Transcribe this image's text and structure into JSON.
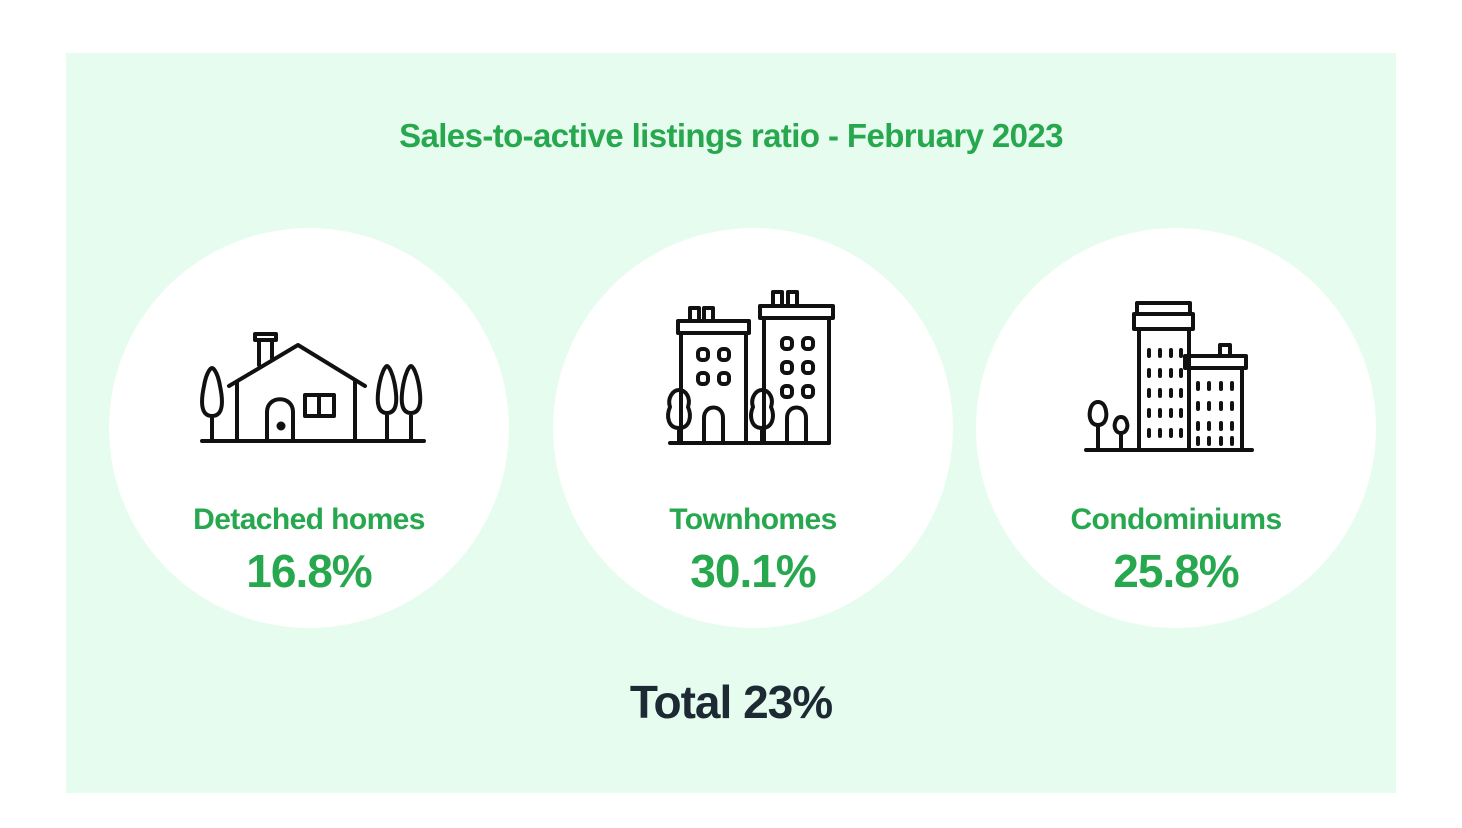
{
  "title": "Sales-to-active listings ratio - February 2023",
  "colors": {
    "background": "#e6fcee",
    "accent": "#27a84f",
    "total_text": "#1e2a33"
  },
  "categories": [
    {
      "icon": "detached-house-icon",
      "label": "Detached homes",
      "value": "16.8%"
    },
    {
      "icon": "townhomes-icon",
      "label": "Townhomes",
      "value": "30.1%"
    },
    {
      "icon": "condominiums-icon",
      "label": "Condominiums",
      "value": "25.8%"
    }
  ],
  "total": {
    "label": "Total",
    "value": "23%"
  }
}
